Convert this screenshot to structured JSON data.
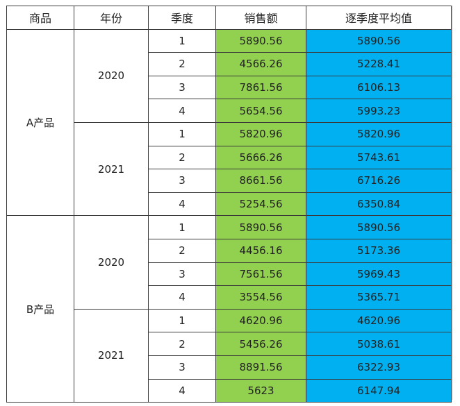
{
  "headers": {
    "product": "商品",
    "year": "年份",
    "quarter": "季度",
    "sales": "销售额",
    "avg": "逐季度平均值"
  },
  "colors": {
    "sales_fill": "#92d050",
    "avg_fill": "#00b0f0"
  },
  "groups": [
    {
      "product": "A产品",
      "years": [
        {
          "year": "2020",
          "rows": [
            {
              "quarter": "1",
              "sales": "5890.56",
              "avg": "5890.56"
            },
            {
              "quarter": "2",
              "sales": "4566.26",
              "avg": "5228.41"
            },
            {
              "quarter": "3",
              "sales": "7861.56",
              "avg": "6106.13"
            },
            {
              "quarter": "4",
              "sales": "5654.56",
              "avg": "5993.23"
            }
          ]
        },
        {
          "year": "2021",
          "rows": [
            {
              "quarter": "1",
              "sales": "5820.96",
              "avg": "5820.96"
            },
            {
              "quarter": "2",
              "sales": "5666.26",
              "avg": "5743.61"
            },
            {
              "quarter": "3",
              "sales": "8661.56",
              "avg": "6716.26"
            },
            {
              "quarter": "4",
              "sales": "5254.56",
              "avg": "6350.84"
            }
          ]
        }
      ]
    },
    {
      "product": "B产品",
      "years": [
        {
          "year": "2020",
          "rows": [
            {
              "quarter": "1",
              "sales": "5890.56",
              "avg": "5890.56"
            },
            {
              "quarter": "2",
              "sales": "4456.16",
              "avg": "5173.36"
            },
            {
              "quarter": "3",
              "sales": "7561.56",
              "avg": "5969.43"
            },
            {
              "quarter": "4",
              "sales": "3554.56",
              "avg": "5365.71"
            }
          ]
        },
        {
          "year": "2021",
          "rows": [
            {
              "quarter": "1",
              "sales": "4620.96",
              "avg": "4620.96"
            },
            {
              "quarter": "2",
              "sales": "5456.26",
              "avg": "5038.61"
            },
            {
              "quarter": "3",
              "sales": "8891.56",
              "avg": "6322.93"
            },
            {
              "quarter": "4",
              "sales": "5623",
              "avg": "6147.94"
            }
          ]
        }
      ]
    }
  ]
}
